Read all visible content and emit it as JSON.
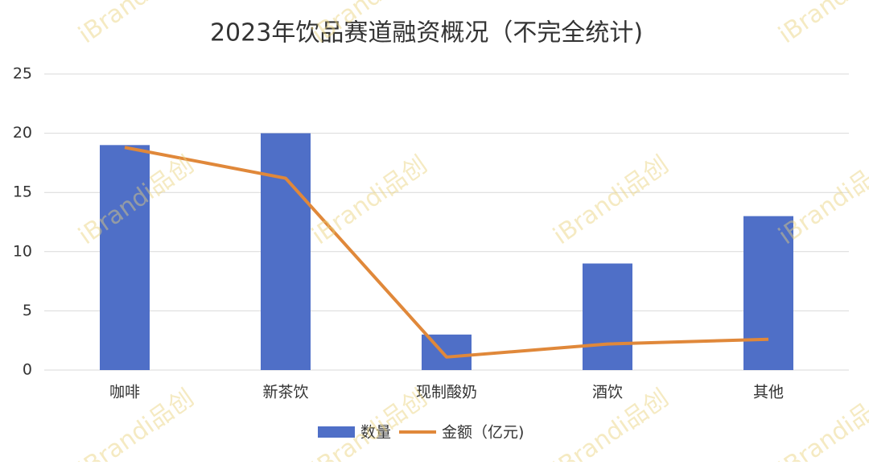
{
  "chart_data": {
    "type": "combo",
    "title": "2023年饮品赛道融资概况（不完全统计)",
    "categories": [
      "咖啡",
      "新茶饮",
      "现制酸奶",
      "酒饮",
      "其他"
    ],
    "series": [
      {
        "name": "数量",
        "type": "bar",
        "color": "#4f6fc7",
        "values": [
          19,
          20,
          3,
          9,
          13
        ]
      },
      {
        "name": "金额（亿元)",
        "type": "line",
        "color": "#e0883a",
        "values": [
          18.8,
          16.2,
          1.1,
          2.2,
          2.6
        ]
      }
    ],
    "ylim": [
      0,
      25
    ],
    "yticks": [
      0,
      5,
      10,
      15,
      20,
      25
    ],
    "grid": true,
    "legend": "bottom",
    "watermark": "iBrandi品创"
  }
}
